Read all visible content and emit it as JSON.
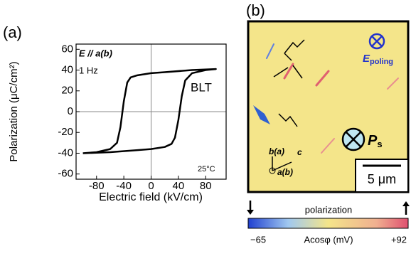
{
  "chart_data": {
    "type": "line",
    "panel_label": "(a)",
    "xlabel": "Electric field (kV/cm)",
    "ylabel": "Polarization (μC/cm²)",
    "annotations": [
      "E // a(b)",
      "1 Hz",
      "BLT",
      "25°C"
    ],
    "x": [
      -100,
      -80,
      -60,
      -20,
      0,
      20,
      30,
      35,
      40,
      45,
      50,
      60,
      80,
      95,
      60,
      20,
      0,
      -20,
      -30,
      -35,
      -40,
      -45,
      -50,
      -60,
      -80,
      -100
    ],
    "values": [
      -40,
      -39.5,
      -39,
      -37,
      -36,
      -34,
      -31,
      -25,
      -8,
      15,
      30,
      37,
      40,
      41,
      40,
      38,
      37,
      35,
      33,
      28,
      10,
      -15,
      -30,
      -36,
      -39,
      -40
    ],
    "color": "#000000",
    "xlim": [
      -110,
      110
    ],
    "xticks": [
      -80,
      -40,
      0,
      40,
      80
    ],
    "ylim": [
      -65,
      65
    ],
    "yticks": [
      -60,
      -40,
      -20,
      0,
      20,
      40,
      60
    ],
    "zero_lines": true
  },
  "panel_b": {
    "panel_label": "(b)",
    "e_field": "E",
    "e_sub": "poling",
    "ps": "P",
    "ps_sub": "s",
    "scale_bar": "5 μm",
    "axis_b": "b(a)",
    "axis_c": "c",
    "axis_a": "a(b)",
    "colorbar": {
      "title": "polarization",
      "label": "Acosφ (mV)",
      "min": {
        "value": -65,
        "label": "−65"
      },
      "max": {
        "value": 92,
        "label": "+92"
      }
    }
  }
}
